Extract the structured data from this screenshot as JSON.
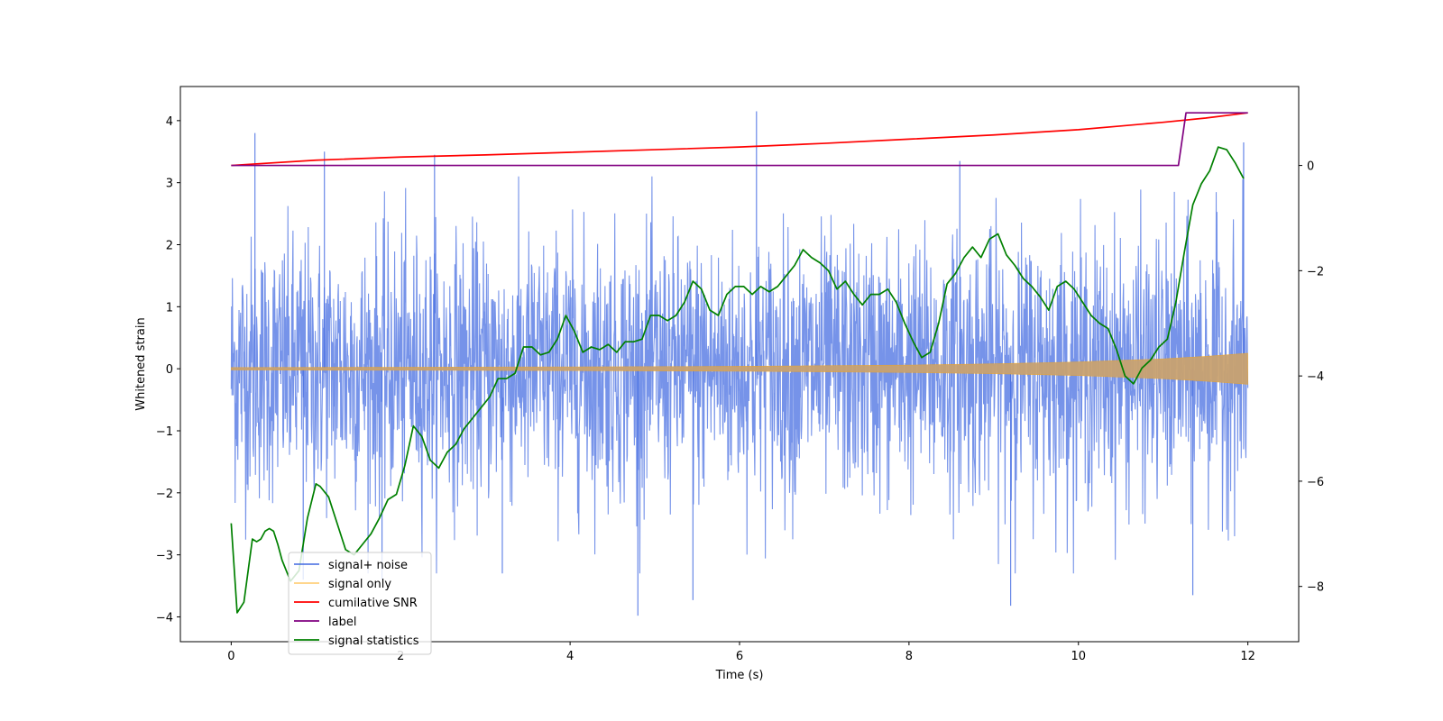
{
  "chart_data": {
    "type": "line",
    "xlabel": "Time (s)",
    "ylabel": "Whitened strain",
    "xlim": [
      -0.6,
      12.6
    ],
    "ylim": [
      -4.4,
      4.55
    ],
    "y2lim": [
      -9.05,
      1.5
    ],
    "xticks": [
      0,
      2,
      4,
      6,
      8,
      10,
      12
    ],
    "yticks": [
      -4,
      -3,
      -2,
      -1,
      0,
      1,
      2,
      3,
      4
    ],
    "y2ticks": [
      -8,
      -6,
      -4,
      -2,
      0
    ],
    "grid": false,
    "legend_position": "lower-left",
    "series": [
      {
        "name": "signal+ noise",
        "axis": "left",
        "color": "#4169e1",
        "description": "dense noise band, approx. between -2.5 and 2.5 with occasional spikes",
        "band": {
          "lower": -2.0,
          "upper": 2.0
        },
        "spikes": [
          [
            0.28,
            3.8
          ],
          [
            1.1,
            3.5
          ],
          [
            2.4,
            3.45
          ],
          [
            6.2,
            4.15
          ],
          [
            8.6,
            3.35
          ],
          [
            11.95,
            3.65
          ],
          [
            0.85,
            -3.4
          ],
          [
            1.78,
            -3.4
          ],
          [
            3.2,
            -3.3
          ],
          [
            4.8,
            -3.98
          ],
          [
            5.45,
            -3.73
          ],
          [
            9.2,
            -3.82
          ],
          [
            11.35,
            -3.65
          ]
        ]
      },
      {
        "name": "signal only",
        "axis": "left",
        "color": "#ffa500",
        "envelope": [
          [
            0,
            0.02
          ],
          [
            2,
            0.025
          ],
          [
            4,
            0.03
          ],
          [
            6,
            0.04
          ],
          [
            8,
            0.06
          ],
          [
            9,
            0.08
          ],
          [
            10,
            0.11
          ],
          [
            11,
            0.16
          ],
          [
            11.5,
            0.2
          ],
          [
            12,
            0.25
          ]
        ]
      },
      {
        "name": "cumilative SNR",
        "axis": "right",
        "color": "#ff0000",
        "x": [
          0,
          1,
          2,
          3,
          4,
          5,
          6,
          7,
          8,
          9,
          10,
          10.5,
          11,
          11.5,
          12
        ],
        "y": [
          0.0,
          0.1,
          0.16,
          0.2,
          0.25,
          0.3,
          0.35,
          0.42,
          0.5,
          0.58,
          0.68,
          0.75,
          0.82,
          0.9,
          1.0
        ]
      },
      {
        "name": "label",
        "axis": "right",
        "color": "#800080",
        "x": [
          0,
          11.18,
          11.27,
          12
        ],
        "y": [
          0,
          0,
          1,
          1
        ]
      },
      {
        "name": "signal statistics",
        "axis": "right",
        "color": "#008000",
        "x": [
          0,
          0.07,
          0.15,
          0.2,
          0.25,
          0.3,
          0.35,
          0.4,
          0.45,
          0.5,
          0.55,
          0.6,
          0.7,
          0.8,
          0.9,
          1.0,
          1.05,
          1.15,
          1.25,
          1.35,
          1.45,
          1.55,
          1.65,
          1.75,
          1.85,
          1.95,
          2.05,
          2.15,
          2.25,
          2.35,
          2.45,
          2.55,
          2.65,
          2.75,
          2.85,
          2.95,
          3.05,
          3.15,
          3.25,
          3.35,
          3.45,
          3.55,
          3.65,
          3.75,
          3.85,
          3.95,
          4.05,
          4.15,
          4.25,
          4.35,
          4.45,
          4.55,
          4.65,
          4.75,
          4.85,
          4.95,
          5.05,
          5.15,
          5.25,
          5.35,
          5.45,
          5.55,
          5.65,
          5.75,
          5.85,
          5.95,
          6.05,
          6.15,
          6.25,
          6.35,
          6.45,
          6.55,
          6.65,
          6.75,
          6.85,
          6.95,
          7.05,
          7.15,
          7.25,
          7.35,
          7.45,
          7.55,
          7.65,
          7.75,
          7.85,
          7.95,
          8.05,
          8.15,
          8.25,
          8.35,
          8.45,
          8.55,
          8.65,
          8.75,
          8.85,
          8.95,
          9.05,
          9.15,
          9.25,
          9.35,
          9.45,
          9.55,
          9.65,
          9.75,
          9.85,
          9.95,
          10.05,
          10.15,
          10.25,
          10.35,
          10.45,
          10.55,
          10.65,
          10.75,
          10.85,
          10.95,
          11.05,
          11.15,
          11.25,
          11.35,
          11.45,
          11.55,
          11.65,
          11.75,
          11.85,
          11.95
        ],
        "y": [
          -6.8,
          -8.5,
          -8.3,
          -7.7,
          -7.1,
          -7.15,
          -7.1,
          -6.95,
          -6.9,
          -6.95,
          -7.2,
          -7.5,
          -7.9,
          -7.7,
          -6.7,
          -6.05,
          -6.1,
          -6.3,
          -6.8,
          -7.3,
          -7.4,
          -7.2,
          -7.0,
          -6.7,
          -6.35,
          -6.25,
          -5.7,
          -4.95,
          -5.15,
          -5.6,
          -5.75,
          -5.45,
          -5.3,
          -5.0,
          -4.8,
          -4.6,
          -4.4,
          -4.05,
          -4.05,
          -3.95,
          -3.45,
          -3.45,
          -3.6,
          -3.55,
          -3.3,
          -2.85,
          -3.15,
          -3.55,
          -3.45,
          -3.5,
          -3.4,
          -3.55,
          -3.35,
          -3.35,
          -3.3,
          -2.85,
          -2.85,
          -2.95,
          -2.85,
          -2.6,
          -2.2,
          -2.35,
          -2.75,
          -2.85,
          -2.45,
          -2.3,
          -2.3,
          -2.45,
          -2.3,
          -2.4,
          -2.3,
          -2.1,
          -1.9,
          -1.6,
          -1.75,
          -1.85,
          -2.0,
          -2.35,
          -2.2,
          -2.45,
          -2.65,
          -2.45,
          -2.45,
          -2.35,
          -2.6,
          -3.0,
          -3.35,
          -3.65,
          -3.55,
          -3.0,
          -2.25,
          -2.05,
          -1.75,
          -1.55,
          -1.75,
          -1.4,
          -1.3,
          -1.7,
          -1.9,
          -2.15,
          -2.3,
          -2.5,
          -2.75,
          -2.3,
          -2.2,
          -2.35,
          -2.6,
          -2.85,
          -3.0,
          -3.1,
          -3.5,
          -4.0,
          -4.15,
          -3.85,
          -3.7,
          -3.45,
          -3.3,
          -2.6,
          -1.65,
          -0.75,
          -0.35,
          -0.1,
          0.35,
          0.3,
          0.05,
          -0.25
        ]
      }
    ]
  }
}
